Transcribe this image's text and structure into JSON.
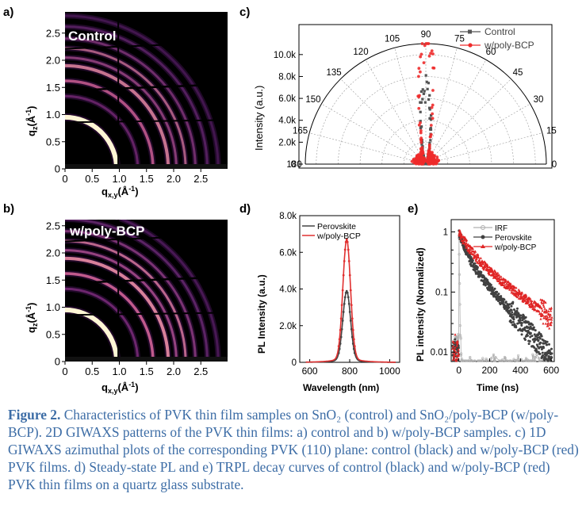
{
  "panels": {
    "a": {
      "letter": "a)",
      "label": "Control",
      "ylabel": "q",
      "ylabel_sub": "z",
      "ylabel_unit": "(Å",
      "ylabel_sup": "-1",
      "ylabel_end": ")",
      "xlabel": "q",
      "xlabel_sub": "x,y",
      "xlabel_unit": "(Å",
      "xlabel_sup": "-1",
      "xlabel_end": ")",
      "yticks": [
        "2.5",
        "2.0",
        "1.5",
        "1.0",
        "0.5",
        "0"
      ],
      "xticks": [
        "0",
        "0.5",
        "1.0",
        "1.5",
        "2.0",
        "2.5"
      ]
    },
    "b": {
      "letter": "b)",
      "label": "w/poly-BCP",
      "ylabel": "q",
      "ylabel_sub": "z",
      "ylabel_unit": "(Å",
      "ylabel_sup": "-1",
      "ylabel_end": ")",
      "xlabel": "q",
      "xlabel_sub": "x,y",
      "xlabel_unit": "(Å",
      "xlabel_sup": "-1",
      "xlabel_end": ")",
      "yticks": [
        "2.5",
        "2.0",
        "1.5",
        "1.0",
        "0.5",
        "0"
      ],
      "xticks": [
        "0",
        "0.5",
        "1.0",
        "1.5",
        "2.0",
        "2.5"
      ]
    },
    "c": {
      "letter": "c)"
    },
    "d": {
      "letter": "d)"
    },
    "e": {
      "letter": "e)"
    }
  },
  "chart_data": [
    {
      "id": "c",
      "type": "scatter",
      "coordinate": "polar-half",
      "ylabel": "Intensity (a.u.)",
      "radial_ticks": [
        "0",
        "2.0k",
        "4.0k",
        "6.0k",
        "8.0k",
        "10.0k"
      ],
      "radial_range": [
        0,
        11000
      ],
      "angle_ticks": [
        "0",
        "15",
        "30",
        "45",
        "60",
        "75",
        "90",
        "105",
        "120",
        "135",
        "150",
        "165",
        "180"
      ],
      "legend": [
        "Control",
        "w/poly-BCP"
      ],
      "legend_position": "top-right",
      "series": [
        {
          "name": "Control",
          "color": "#555555",
          "peak_angle": 90,
          "peak_value": 6000,
          "width_deg": 6,
          "baseline": 300
        },
        {
          "name": "w/poly-BCP",
          "color": "#ee2b2b",
          "peak_angle": 90,
          "peak_value": 9800,
          "width_deg": 5,
          "baseline": 700
        }
      ]
    },
    {
      "id": "d",
      "type": "line",
      "xlabel": "Wavelength (nm)",
      "ylabel": "PL Intensity (a.u.)",
      "xlim": [
        550,
        1050
      ],
      "ylim": [
        0,
        8000
      ],
      "xticks": [
        "600",
        "800",
        "1000"
      ],
      "yticks": [
        "0",
        "2.0k",
        "4.0k",
        "6.0k",
        "8.0k"
      ],
      "legend": [
        "Perovskite",
        "w/poly-BCP"
      ],
      "legend_position": "top-left",
      "series": [
        {
          "name": "Perovskite",
          "color": "#444444",
          "peak_x": 785,
          "peak_y": 3700,
          "fwhm": 45
        },
        {
          "name": "w/poly-BCP",
          "color": "#e03030",
          "peak_x": 785,
          "peak_y": 6400,
          "fwhm": 45
        }
      ]
    },
    {
      "id": "e",
      "type": "scatter",
      "yscale": "log",
      "xlabel": "Time (ns)",
      "ylabel": "PL intensity (Normalized)",
      "xlim": [
        -50,
        620
      ],
      "ylim": [
        0.007,
        1.6
      ],
      "xticks": [
        "0",
        "200",
        "400",
        "600"
      ],
      "yticks": [
        "1",
        "0.1",
        "0.01"
      ],
      "legend": [
        "IRF",
        "Perovskite",
        "w/poly-BCP"
      ],
      "legend_position": "top-right",
      "series": [
        {
          "name": "IRF",
          "color": "#b0b0b0",
          "t0": 0,
          "tau1": 2,
          "tau2": 6,
          "a1": 0.9
        },
        {
          "name": "Perovskite",
          "color": "#404040",
          "t0": 0,
          "tau1": 35,
          "tau2": 150,
          "a1": 0.55
        },
        {
          "name": "w/poly-BCP",
          "color": "#e02525",
          "t0": 0,
          "tau1": 60,
          "tau2": 230,
          "a1": 0.5
        }
      ]
    }
  ],
  "caption": {
    "lead": "Figure 2.",
    "text": " Characteristics of PVK thin film samples on SnO₂ (control) and SnO₂/poly-BCP (w/poly-BCP). 2D GIWAXS patterns of the PVK thin films: a) control and b) w/poly-BCP samples. c) 1D GIWAXS azimuthal plots of the corresponding PVK (110) plane: control (black) and w/poly-BCP (red) PVK films. d) Steady-state PL and e) TRPL decay curves of control (black) and w/poly-BCP (red) PVK thin films on a quartz glass substrate."
  }
}
